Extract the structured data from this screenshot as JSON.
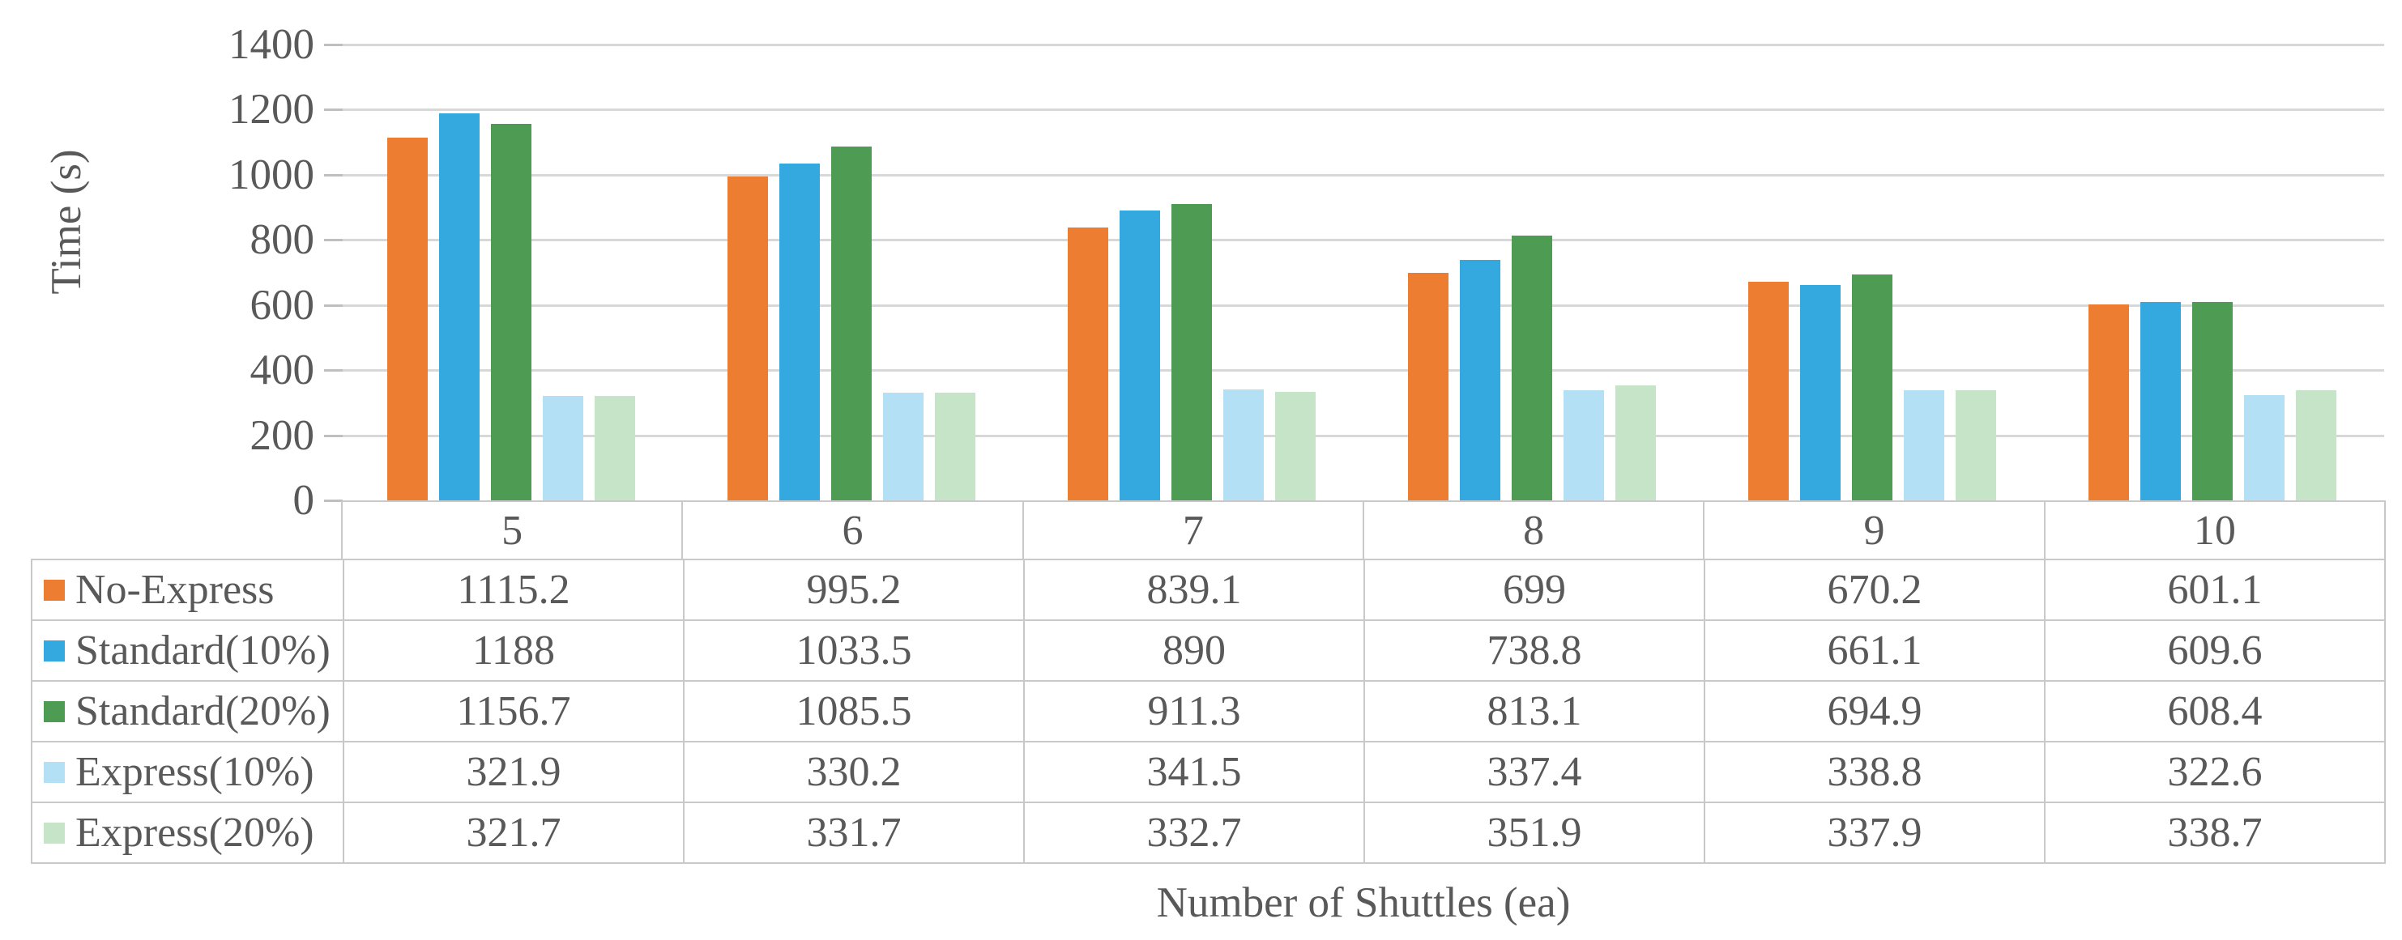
{
  "figure": {
    "background": "#FFFFFF",
    "text_color": "#595959",
    "gridline_color": "#D8D8D8",
    "table_border_color": "#C9C9C9"
  },
  "chart_data": {
    "type": "bar",
    "title": "",
    "xlabel": "Number of Shuttles (ea)",
    "ylabel": "Time (s)",
    "categories": [
      "5",
      "6",
      "7",
      "8",
      "9",
      "10"
    ],
    "series": [
      {
        "name": "No-Express",
        "color": "#ED7D31",
        "values": [
          1115.2,
          995.2,
          839.1,
          699,
          670.2,
          601.1
        ]
      },
      {
        "name": "Standard(10%)",
        "color": "#33A9DF",
        "values": [
          1188,
          1033.5,
          890,
          738.8,
          661.1,
          609.6
        ]
      },
      {
        "name": "Standard(20%)",
        "color": "#4E9C54",
        "values": [
          1156.7,
          1085.5,
          911.3,
          813.1,
          694.9,
          608.4
        ]
      },
      {
        "name": "Express(10%)",
        "color": "#B3E0F4",
        "values": [
          321.9,
          330.2,
          341.5,
          337.4,
          338.8,
          322.6
        ]
      },
      {
        "name": "Express(20%)",
        "color": "#C6E5C8",
        "values": [
          321.7,
          331.7,
          332.7,
          351.9,
          337.9,
          338.7
        ]
      }
    ],
    "ylim": [
      0,
      1400
    ],
    "yticks": [
      0,
      200,
      400,
      600,
      800,
      1000,
      1200,
      1400
    ],
    "grid": true,
    "legend_position": "data-table-left-column",
    "data_table": true
  }
}
